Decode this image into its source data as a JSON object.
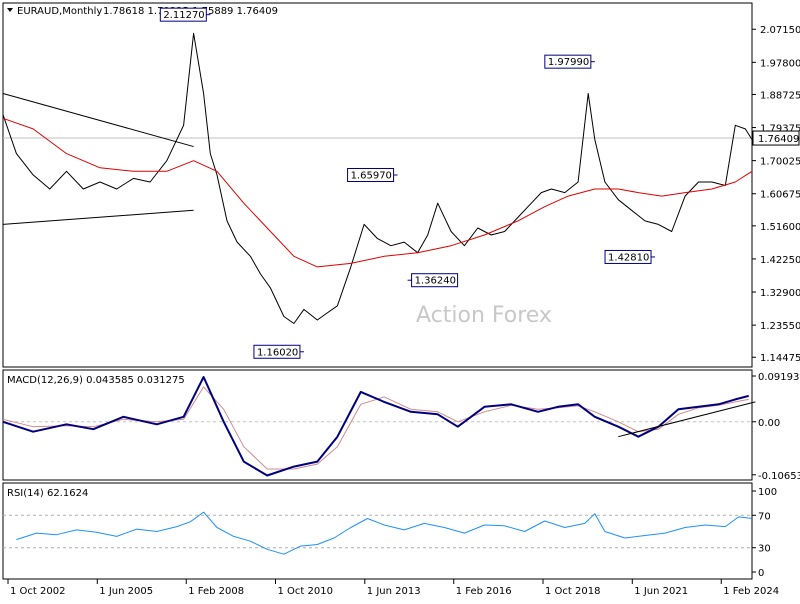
{
  "header": {
    "symbol": "EURAUD,Monthly",
    "ohlc": "1.78618 1.79325 1.75889 1.76409"
  },
  "watermark": "Action Forex",
  "colors": {
    "price": "#000000",
    "ma": "#e00000",
    "macd": "#000080",
    "signal": "#d08a8a",
    "rsi": "#1e90ff",
    "box": "#000080",
    "level_line": "#c0c0c0"
  },
  "chart_data": [
    {
      "type": "line",
      "name": "price",
      "ylim": [
        1.12,
        2.14
      ],
      "price_ticks": [
        "2.07150",
        "1.97800",
        "1.88725",
        "1.79375",
        "1.70025",
        "1.60675",
        "1.51600",
        "1.42250",
        "1.32900",
        "1.23550",
        "1.14475"
      ],
      "current_price": "1.76409",
      "x_labels": [
        "1 Oct 2002",
        "1 Jun 2005",
        "1 Feb 2008",
        "1 Oct 2010",
        "1 Jun 2013",
        "1 Feb 2016",
        "1 Oct 2018",
        "1 Jun 2021",
        "1 Feb 2024"
      ],
      "x_label_dates": [
        2002.75,
        2005.42,
        2008.08,
        2010.75,
        2013.42,
        2016.08,
        2018.75,
        2021.42,
        2024.08
      ],
      "xlim": [
        2002.6,
        2025.0
      ],
      "series": [
        {
          "x": [
            2002.6,
            2003.0,
            2003.5,
            2004.0,
            2004.5,
            2005.0,
            2005.5,
            2006.0,
            2006.5,
            2007.0,
            2007.5,
            2008.0,
            2008.3,
            2008.6,
            2008.8,
            2009.0,
            2009.3,
            2009.6,
            2010.0,
            2010.3,
            2010.6,
            2011.0,
            2011.3,
            2011.6,
            2012.0,
            2012.3,
            2012.6,
            2013.0,
            2013.4,
            2013.8,
            2014.2,
            2014.6,
            2015.0,
            2015.3,
            2015.6,
            2016.0,
            2016.4,
            2016.8,
            2017.2,
            2017.6,
            2018.0,
            2018.4,
            2018.7,
            2019.0,
            2019.4,
            2019.8,
            2020.1,
            2020.3,
            2020.6,
            2021.0,
            2021.4,
            2021.8,
            2022.2,
            2022.6,
            2023.0,
            2023.4,
            2023.8,
            2024.2,
            2024.5,
            2024.8,
            2025.0
          ],
          "y": [
            1.83,
            1.72,
            1.66,
            1.62,
            1.67,
            1.62,
            1.64,
            1.62,
            1.65,
            1.64,
            1.7,
            1.8,
            2.06,
            1.89,
            1.72,
            1.66,
            1.53,
            1.47,
            1.43,
            1.38,
            1.34,
            1.26,
            1.24,
            1.28,
            1.25,
            1.27,
            1.29,
            1.4,
            1.52,
            1.48,
            1.46,
            1.47,
            1.44,
            1.49,
            1.58,
            1.5,
            1.46,
            1.51,
            1.49,
            1.5,
            1.54,
            1.58,
            1.61,
            1.62,
            1.61,
            1.64,
            1.89,
            1.76,
            1.64,
            1.59,
            1.56,
            1.53,
            1.52,
            1.5,
            1.6,
            1.64,
            1.64,
            1.63,
            1.8,
            1.79,
            1.76
          ]
        },
        {
          "name": "MA",
          "x": [
            2002.6,
            2003.5,
            2004.5,
            2005.5,
            2006.5,
            2007.5,
            2008.3,
            2009.0,
            2009.8,
            2010.6,
            2011.3,
            2012.0,
            2013.0,
            2014.0,
            2015.0,
            2016.0,
            2017.0,
            2018.0,
            2018.8,
            2019.5,
            2020.3,
            2021.0,
            2021.6,
            2022.3,
            2023.0,
            2023.8,
            2024.5,
            2025.0
          ],
          "y": [
            1.82,
            1.79,
            1.72,
            1.68,
            1.67,
            1.67,
            1.7,
            1.67,
            1.58,
            1.5,
            1.43,
            1.4,
            1.41,
            1.43,
            1.44,
            1.46,
            1.49,
            1.53,
            1.57,
            1.6,
            1.62,
            1.62,
            1.61,
            1.6,
            1.61,
            1.62,
            1.64,
            1.67
          ]
        }
      ],
      "annotations": [
        {
          "label": "2.11270",
          "x": 2008.8,
          "y": 2.1127,
          "side": "left"
        },
        {
          "label": "1.97990",
          "x": 2020.3,
          "y": 1.9799,
          "side": "left"
        },
        {
          "label": "1.65970",
          "x": 2014.4,
          "y": 1.6597,
          "side": "left"
        },
        {
          "label": "1.36240",
          "x": 2014.7,
          "y": 1.3624,
          "side": "right"
        },
        {
          "label": "1.42810",
          "x": 2022.1,
          "y": 1.4281,
          "side": "left"
        },
        {
          "label": "1.16020",
          "x": 2011.6,
          "y": 1.1602,
          "side": "left"
        }
      ],
      "trendlines": [
        {
          "x": [
            2002.6,
            2008.3
          ],
          "y": [
            1.89,
            1.74
          ]
        },
        {
          "x": [
            2002.6,
            2008.3
          ],
          "y": [
            1.52,
            1.56
          ]
        }
      ]
    },
    {
      "type": "line",
      "title": "MACD(12,26,9) 0.043585 0.031275",
      "ylim": [
        -0.115,
        0.1
      ],
      "y_ticks": [
        "0.091935",
        "0.00",
        "-0.106534"
      ],
      "series": [
        {
          "name": "MACD",
          "x": [
            2002.6,
            2003.5,
            2004.5,
            2005.3,
            2006.2,
            2007.2,
            2008.0,
            2008.6,
            2009.2,
            2009.8,
            2010.5,
            2011.3,
            2012.0,
            2012.6,
            2013.3,
            2014.0,
            2014.8,
            2015.6,
            2016.2,
            2017.0,
            2017.8,
            2018.6,
            2019.2,
            2019.8,
            2020.3,
            2021.0,
            2021.6,
            2022.2,
            2022.8,
            2023.4,
            2024.0,
            2024.5,
            2024.9
          ],
          "y": [
            0.0,
            -0.02,
            -0.005,
            -0.015,
            0.01,
            -0.005,
            0.01,
            0.09,
            0.0,
            -0.08,
            -0.108,
            -0.09,
            -0.08,
            -0.03,
            0.06,
            0.04,
            0.02,
            0.015,
            -0.01,
            0.03,
            0.035,
            0.02,
            0.03,
            0.035,
            0.01,
            -0.01,
            -0.03,
            -0.01,
            0.025,
            0.03,
            0.035,
            0.045,
            0.052
          ]
        },
        {
          "name": "Signal",
          "x": [
            2002.6,
            2003.5,
            2004.5,
            2005.3,
            2006.2,
            2007.2,
            2008.0,
            2008.6,
            2009.2,
            2009.8,
            2010.5,
            2011.3,
            2012.0,
            2012.6,
            2013.3,
            2014.0,
            2014.8,
            2015.6,
            2016.2,
            2017.0,
            2017.8,
            2018.6,
            2019.2,
            2019.8,
            2020.3,
            2021.0,
            2021.6,
            2022.2,
            2022.8,
            2023.4,
            2024.0,
            2024.5,
            2024.9
          ],
          "y": [
            0.005,
            -0.01,
            -0.008,
            -0.01,
            0.005,
            0.0,
            0.005,
            0.07,
            0.025,
            -0.05,
            -0.095,
            -0.095,
            -0.085,
            -0.05,
            0.035,
            0.05,
            0.025,
            0.02,
            0.0,
            0.02,
            0.033,
            0.025,
            0.028,
            0.032,
            0.02,
            0.0,
            -0.02,
            -0.015,
            0.015,
            0.028,
            0.033,
            0.04,
            0.045
          ]
        }
      ],
      "trendlines": [
        {
          "x": [
            2021.0,
            2025.1
          ],
          "y": [
            -0.03,
            0.04
          ]
        }
      ]
    },
    {
      "type": "line",
      "title": "RSI(14) 62.1624",
      "ylim": [
        0,
        100
      ],
      "y_ticks": [
        "100",
        "70",
        "30",
        "0"
      ],
      "levels": [
        70,
        30
      ],
      "series": [
        {
          "name": "RSI",
          "x": [
            2003.0,
            2003.6,
            2004.2,
            2004.8,
            2005.4,
            2006.0,
            2006.6,
            2007.2,
            2007.8,
            2008.2,
            2008.6,
            2009.0,
            2009.5,
            2010.0,
            2010.5,
            2011.0,
            2011.5,
            2012.0,
            2012.5,
            2013.0,
            2013.5,
            2014.0,
            2014.6,
            2015.2,
            2015.8,
            2016.4,
            2017.0,
            2017.6,
            2018.2,
            2018.8,
            2019.4,
            2020.0,
            2020.3,
            2020.6,
            2021.2,
            2021.8,
            2022.4,
            2023.0,
            2023.6,
            2024.2,
            2024.6,
            2025.0
          ],
          "y": [
            40,
            48,
            46,
            52,
            49,
            44,
            53,
            50,
            56,
            62,
            74,
            55,
            44,
            38,
            28,
            22,
            32,
            34,
            42,
            55,
            66,
            58,
            52,
            60,
            55,
            48,
            58,
            57,
            50,
            63,
            55,
            60,
            72,
            50,
            42,
            45,
            48,
            55,
            58,
            56,
            68,
            66
          ]
        }
      ]
    }
  ]
}
